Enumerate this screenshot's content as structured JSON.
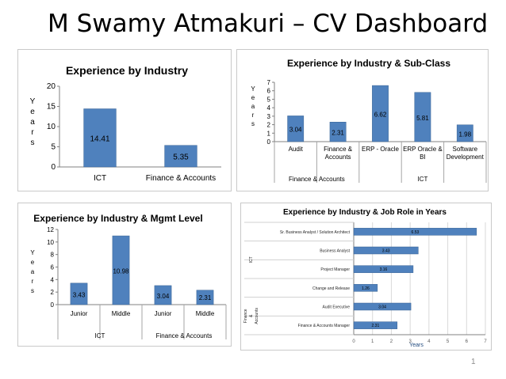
{
  "slide": {
    "title": "M Swamy Atmakuri – CV Dashboard",
    "page_number": "1"
  },
  "colors": {
    "bar": "#4f81bd",
    "bar_edge": "#3a6494",
    "axis": "#808080",
    "grid": "#d9d9d9",
    "text": "#000000"
  },
  "chart_data": [
    {
      "type": "bar",
      "title": "Experience by Industry",
      "ylabel": "Years",
      "categories": [
        "ICT",
        "Finance & Accounts"
      ],
      "values": [
        14.41,
        5.35
      ],
      "data_labels": [
        "14.41",
        "5.35"
      ],
      "ylim": [
        0,
        20
      ],
      "yticks": [
        "0",
        "5",
        "10",
        "15",
        "20"
      ],
      "grid": false
    },
    {
      "type": "bar",
      "title": "Experience by Industry & Sub-Class",
      "ylabel": "Years",
      "categories": [
        "Audit",
        "Finance & Accounts",
        "ERP - Oracle",
        "ERP Oracle & BI",
        "Software Development"
      ],
      "groups": [
        {
          "name": "Finance & Accounts",
          "count": 2
        },
        {
          "name": "ICT",
          "count": 3
        }
      ],
      "values": [
        3.04,
        2.31,
        6.62,
        5.81,
        1.98
      ],
      "data_labels": [
        "3.04",
        "2.31",
        "6.62",
        "5.81",
        "1.98"
      ],
      "ylim": [
        0,
        7
      ],
      "yticks": [
        "0",
        "1",
        "2",
        "3",
        "4",
        "5",
        "6",
        "7"
      ],
      "grid": false
    },
    {
      "type": "bar",
      "title": "Experience by Industry & Mgmt Level",
      "ylabel": "Years",
      "categories": [
        "Junior",
        "Middle",
        "Junior",
        "Middle"
      ],
      "groups": [
        {
          "name": "ICT",
          "count": 2
        },
        {
          "name": "Finance & Accounts",
          "count": 2
        }
      ],
      "values": [
        3.43,
        10.98,
        3.04,
        2.31
      ],
      "data_labels": [
        "3.43",
        "10.98",
        "3.04",
        "2.31"
      ],
      "ylim": [
        0,
        12
      ],
      "yticks": [
        "0",
        "2",
        "4",
        "6",
        "8",
        "10",
        "12"
      ],
      "grid": false
    },
    {
      "type": "bar",
      "orientation": "horizontal",
      "title": "Experience by Industry & Job Role in Years",
      "xlabel": "Years",
      "categories": [
        "Sr. Business Analyst / Solution Architect",
        "Business Analyst",
        "Project Manager",
        "Change and Release",
        "Audit Executive",
        "Finance & Accounts Manager"
      ],
      "groups": [
        {
          "name": "ICT",
          "count": 4
        },
        {
          "name": "Finance & Accounts",
          "count": 2
        }
      ],
      "values": [
        6.53,
        3.43,
        3.16,
        1.26,
        3.04,
        2.31
      ],
      "data_labels": [
        "6.53",
        "3.43",
        "3.16",
        "1.26",
        "3.04",
        "2.31"
      ],
      "xlim": [
        0,
        7
      ],
      "xticks": [
        "0",
        "1",
        "2",
        "3",
        "4",
        "5",
        "6",
        "7"
      ],
      "grid": true
    }
  ]
}
